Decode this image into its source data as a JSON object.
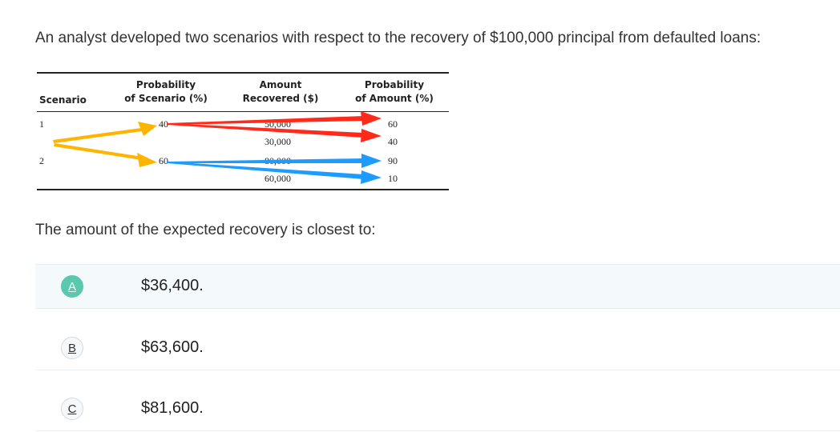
{
  "question": {
    "text": "An analyst developed two scenarios with respect to the recovery of $100,000 principal from defaulted loans:"
  },
  "table": {
    "headers": {
      "scenario": "Scenario",
      "prob_scenario_1": "Probability",
      "prob_scenario_2": "of Scenario (%)",
      "amount_1": "Amount",
      "amount_2": "Recovered ($)",
      "prob_amount_1": "Probability",
      "prob_amount_2": "of Amount (%)"
    },
    "scenarios": [
      {
        "scenario": "1",
        "probability": "40",
        "amounts": [
          "50,000",
          "30,000"
        ],
        "amount_probs": [
          "60",
          "40"
        ]
      },
      {
        "scenario": "2",
        "probability": "60",
        "amounts": [
          "80,000",
          "60,000"
        ],
        "amount_probs": [
          "90",
          "10"
        ]
      }
    ],
    "arrow_colors": {
      "scenario": "#ffb400",
      "scenario1": "#ff2a1a",
      "scenario2": "#1e9bff"
    }
  },
  "prompt": {
    "text": "The amount of the expected recovery is closest to:"
  },
  "options": [
    {
      "letter": "A",
      "text": "$36,400.",
      "selected": true
    },
    {
      "letter": "B",
      "text": "$63,600.",
      "selected": false
    },
    {
      "letter": "C",
      "text": "$81,600.",
      "selected": false
    }
  ],
  "colors": {
    "selected_badge": "#5ac8ad",
    "selected_row": "#f4f9fc"
  }
}
